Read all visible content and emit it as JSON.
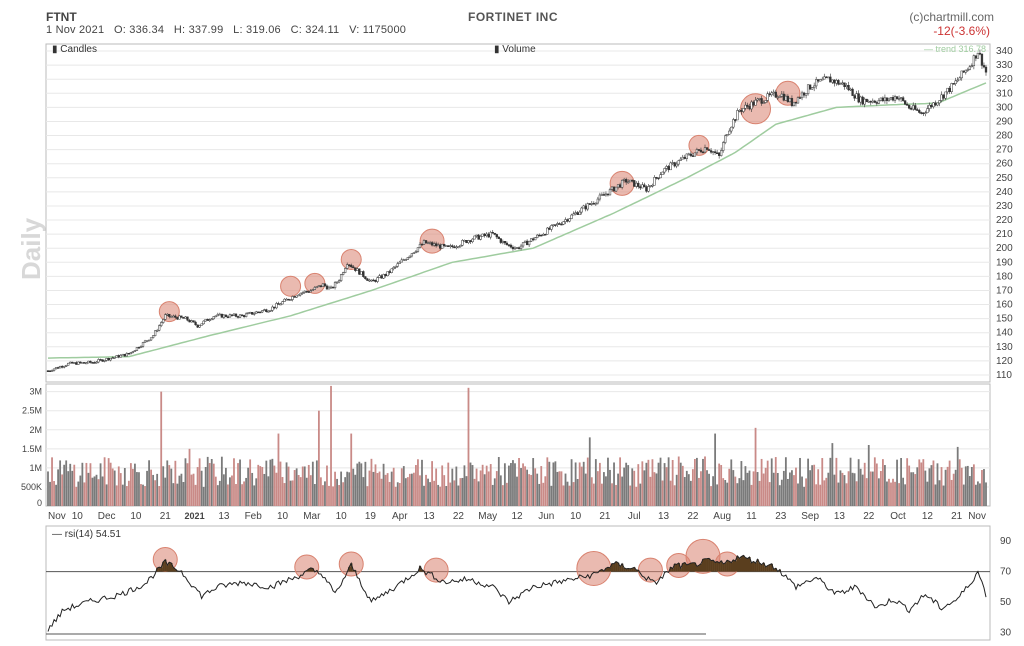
{
  "header": {
    "ticker": "FTNT",
    "ohlc_line": "1 Nov 2021   O: 336.34   H: 337.99   L: 319.06   C: 324.11   V: 1175000",
    "company": "FORTINET INC",
    "copyright": "(c)chartmill.com",
    "change": "-12(-3.6%)"
  },
  "colors": {
    "up": "#7a7a7a",
    "down": "#c98a87",
    "trend": "#9fcc9f",
    "circle": "#d9826f",
    "rsi_fill": "#5a3e1e",
    "grid": "#e8e8e8"
  },
  "chart_data": [
    {
      "type": "candlestick",
      "legend": "Candles",
      "trend_label": "— trend 316.78",
      "period_label": "Daily",
      "ylim": [
        105,
        345
      ],
      "yticks": [
        110,
        120,
        130,
        140,
        150,
        160,
        170,
        180,
        190,
        200,
        210,
        220,
        230,
        240,
        250,
        260,
        270,
        280,
        290,
        300,
        310,
        320,
        330,
        340
      ],
      "x_labels": [
        "Nov",
        "10",
        "Dec",
        "10",
        "21",
        "2021",
        "13",
        "Feb",
        "10",
        "Mar",
        "10",
        "19",
        "Apr",
        "13",
        "22",
        "May",
        "12",
        "Jun",
        "10",
        "21",
        "Jul",
        "13",
        "22",
        "Aug",
        "11",
        "23",
        "Sep",
        "13",
        "22",
        "Oct",
        "12",
        "21",
        "Nov"
      ],
      "price_path": [
        [
          0,
          113
        ],
        [
          10,
          118
        ],
        [
          22,
          119
        ],
        [
          40,
          125
        ],
        [
          52,
          138
        ],
        [
          58,
          152
        ],
        [
          68,
          150
        ],
        [
          74,
          145
        ],
        [
          82,
          152
        ],
        [
          96,
          152
        ],
        [
          110,
          157
        ],
        [
          124,
          168
        ],
        [
          130,
          170
        ],
        [
          136,
          174
        ],
        [
          140,
          171
        ],
        [
          144,
          178
        ],
        [
          148,
          190
        ],
        [
          154,
          183
        ],
        [
          160,
          176
        ],
        [
          168,
          182
        ],
        [
          176,
          192
        ],
        [
          186,
          204
        ],
        [
          198,
          200
        ],
        [
          210,
          207
        ],
        [
          220,
          210
        ],
        [
          226,
          203
        ],
        [
          232,
          200
        ],
        [
          244,
          210
        ],
        [
          258,
          222
        ],
        [
          272,
          235
        ],
        [
          286,
          248
        ],
        [
          296,
          242
        ],
        [
          304,
          255
        ],
        [
          316,
          265
        ],
        [
          326,
          272
        ],
        [
          332,
          265
        ],
        [
          336,
          283
        ],
        [
          342,
          298
        ],
        [
          352,
          305
        ],
        [
          362,
          310
        ],
        [
          368,
          303
        ],
        [
          378,
          316
        ],
        [
          386,
          320
        ],
        [
          394,
          316
        ],
        [
          402,
          305
        ],
        [
          414,
          305
        ],
        [
          420,
          308
        ],
        [
          426,
          300
        ],
        [
          432,
          296
        ],
        [
          440,
          305
        ],
        [
          448,
          316
        ],
        [
          456,
          330
        ],
        [
          460,
          340
        ],
        [
          464,
          325
        ]
      ],
      "trend_path": [
        [
          0,
          122
        ],
        [
          40,
          123
        ],
        [
          80,
          138
        ],
        [
          120,
          152
        ],
        [
          160,
          170
        ],
        [
          200,
          190
        ],
        [
          240,
          200
        ],
        [
          280,
          225
        ],
        [
          316,
          250
        ],
        [
          340,
          268
        ],
        [
          360,
          288
        ],
        [
          390,
          300
        ],
        [
          420,
          302
        ],
        [
          440,
          303
        ],
        [
          465,
          318
        ]
      ],
      "highlight_bars": [
        60,
        120,
        132,
        150,
        190,
        284,
        322,
        350,
        366
      ],
      "highlight_prices": [
        155,
        173,
        175,
        192,
        205,
        246,
        273,
        299,
        310
      ]
    },
    {
      "type": "bar",
      "legend": "Volume",
      "yticks": [
        {
          "v": 500000,
          "t": "500K"
        },
        {
          "v": 1000000,
          "t": "1M"
        },
        {
          "v": 1500000,
          "t": "1.5M"
        },
        {
          "v": 2000000,
          "t": "2M"
        },
        {
          "v": 2500000,
          "t": "2.5M"
        },
        {
          "v": 3000000,
          "t": "3M"
        }
      ],
      "ylim": [
        0,
        3200000
      ],
      "spikes": [
        [
          56,
          3000000
        ],
        [
          70,
          1500000
        ],
        [
          114,
          1900000
        ],
        [
          134,
          2500000
        ],
        [
          140,
          3150000
        ],
        [
          150,
          1900000
        ],
        [
          208,
          3100000
        ],
        [
          268,
          1800000
        ],
        [
          330,
          1900000
        ],
        [
          350,
          2050000
        ],
        [
          388,
          1650000
        ],
        [
          406,
          1600000
        ],
        [
          450,
          1550000
        ]
      ]
    },
    {
      "type": "line",
      "legend": "rsi(14) 54.51",
      "ylim": [
        25,
        100
      ],
      "yticks": [
        30,
        50,
        70,
        90
      ],
      "threshold": 70,
      "rsi_path": [
        [
          0,
          32
        ],
        [
          8,
          45
        ],
        [
          20,
          50
        ],
        [
          36,
          55
        ],
        [
          48,
          62
        ],
        [
          58,
          76
        ],
        [
          66,
          70
        ],
        [
          76,
          54
        ],
        [
          84,
          60
        ],
        [
          96,
          63
        ],
        [
          110,
          60
        ],
        [
          122,
          66
        ],
        [
          130,
          71
        ],
        [
          136,
          68
        ],
        [
          142,
          55
        ],
        [
          150,
          74
        ],
        [
          160,
          50
        ],
        [
          172,
          60
        ],
        [
          184,
          72
        ],
        [
          196,
          63
        ],
        [
          208,
          65
        ],
        [
          220,
          60
        ],
        [
          228,
          50
        ],
        [
          240,
          60
        ],
        [
          256,
          64
        ],
        [
          270,
          68
        ],
        [
          280,
          75
        ],
        [
          290,
          72
        ],
        [
          300,
          62
        ],
        [
          310,
          74
        ],
        [
          318,
          74
        ],
        [
          326,
          77
        ],
        [
          334,
          75
        ],
        [
          342,
          80
        ],
        [
          350,
          77
        ],
        [
          360,
          73
        ],
        [
          370,
          60
        ],
        [
          380,
          66
        ],
        [
          390,
          55
        ],
        [
          400,
          60
        ],
        [
          410,
          46
        ],
        [
          418,
          52
        ],
        [
          426,
          45
        ],
        [
          434,
          55
        ],
        [
          442,
          46
        ],
        [
          450,
          52
        ],
        [
          456,
          62
        ],
        [
          460,
          70
        ],
        [
          464,
          55
        ]
      ],
      "highlights": [
        [
          58,
          78
        ],
        [
          128,
          73
        ],
        [
          150,
          75
        ],
        [
          192,
          71
        ],
        [
          270,
          72
        ],
        [
          298,
          71
        ],
        [
          312,
          74
        ],
        [
          324,
          80
        ],
        [
          336,
          75
        ]
      ]
    }
  ]
}
